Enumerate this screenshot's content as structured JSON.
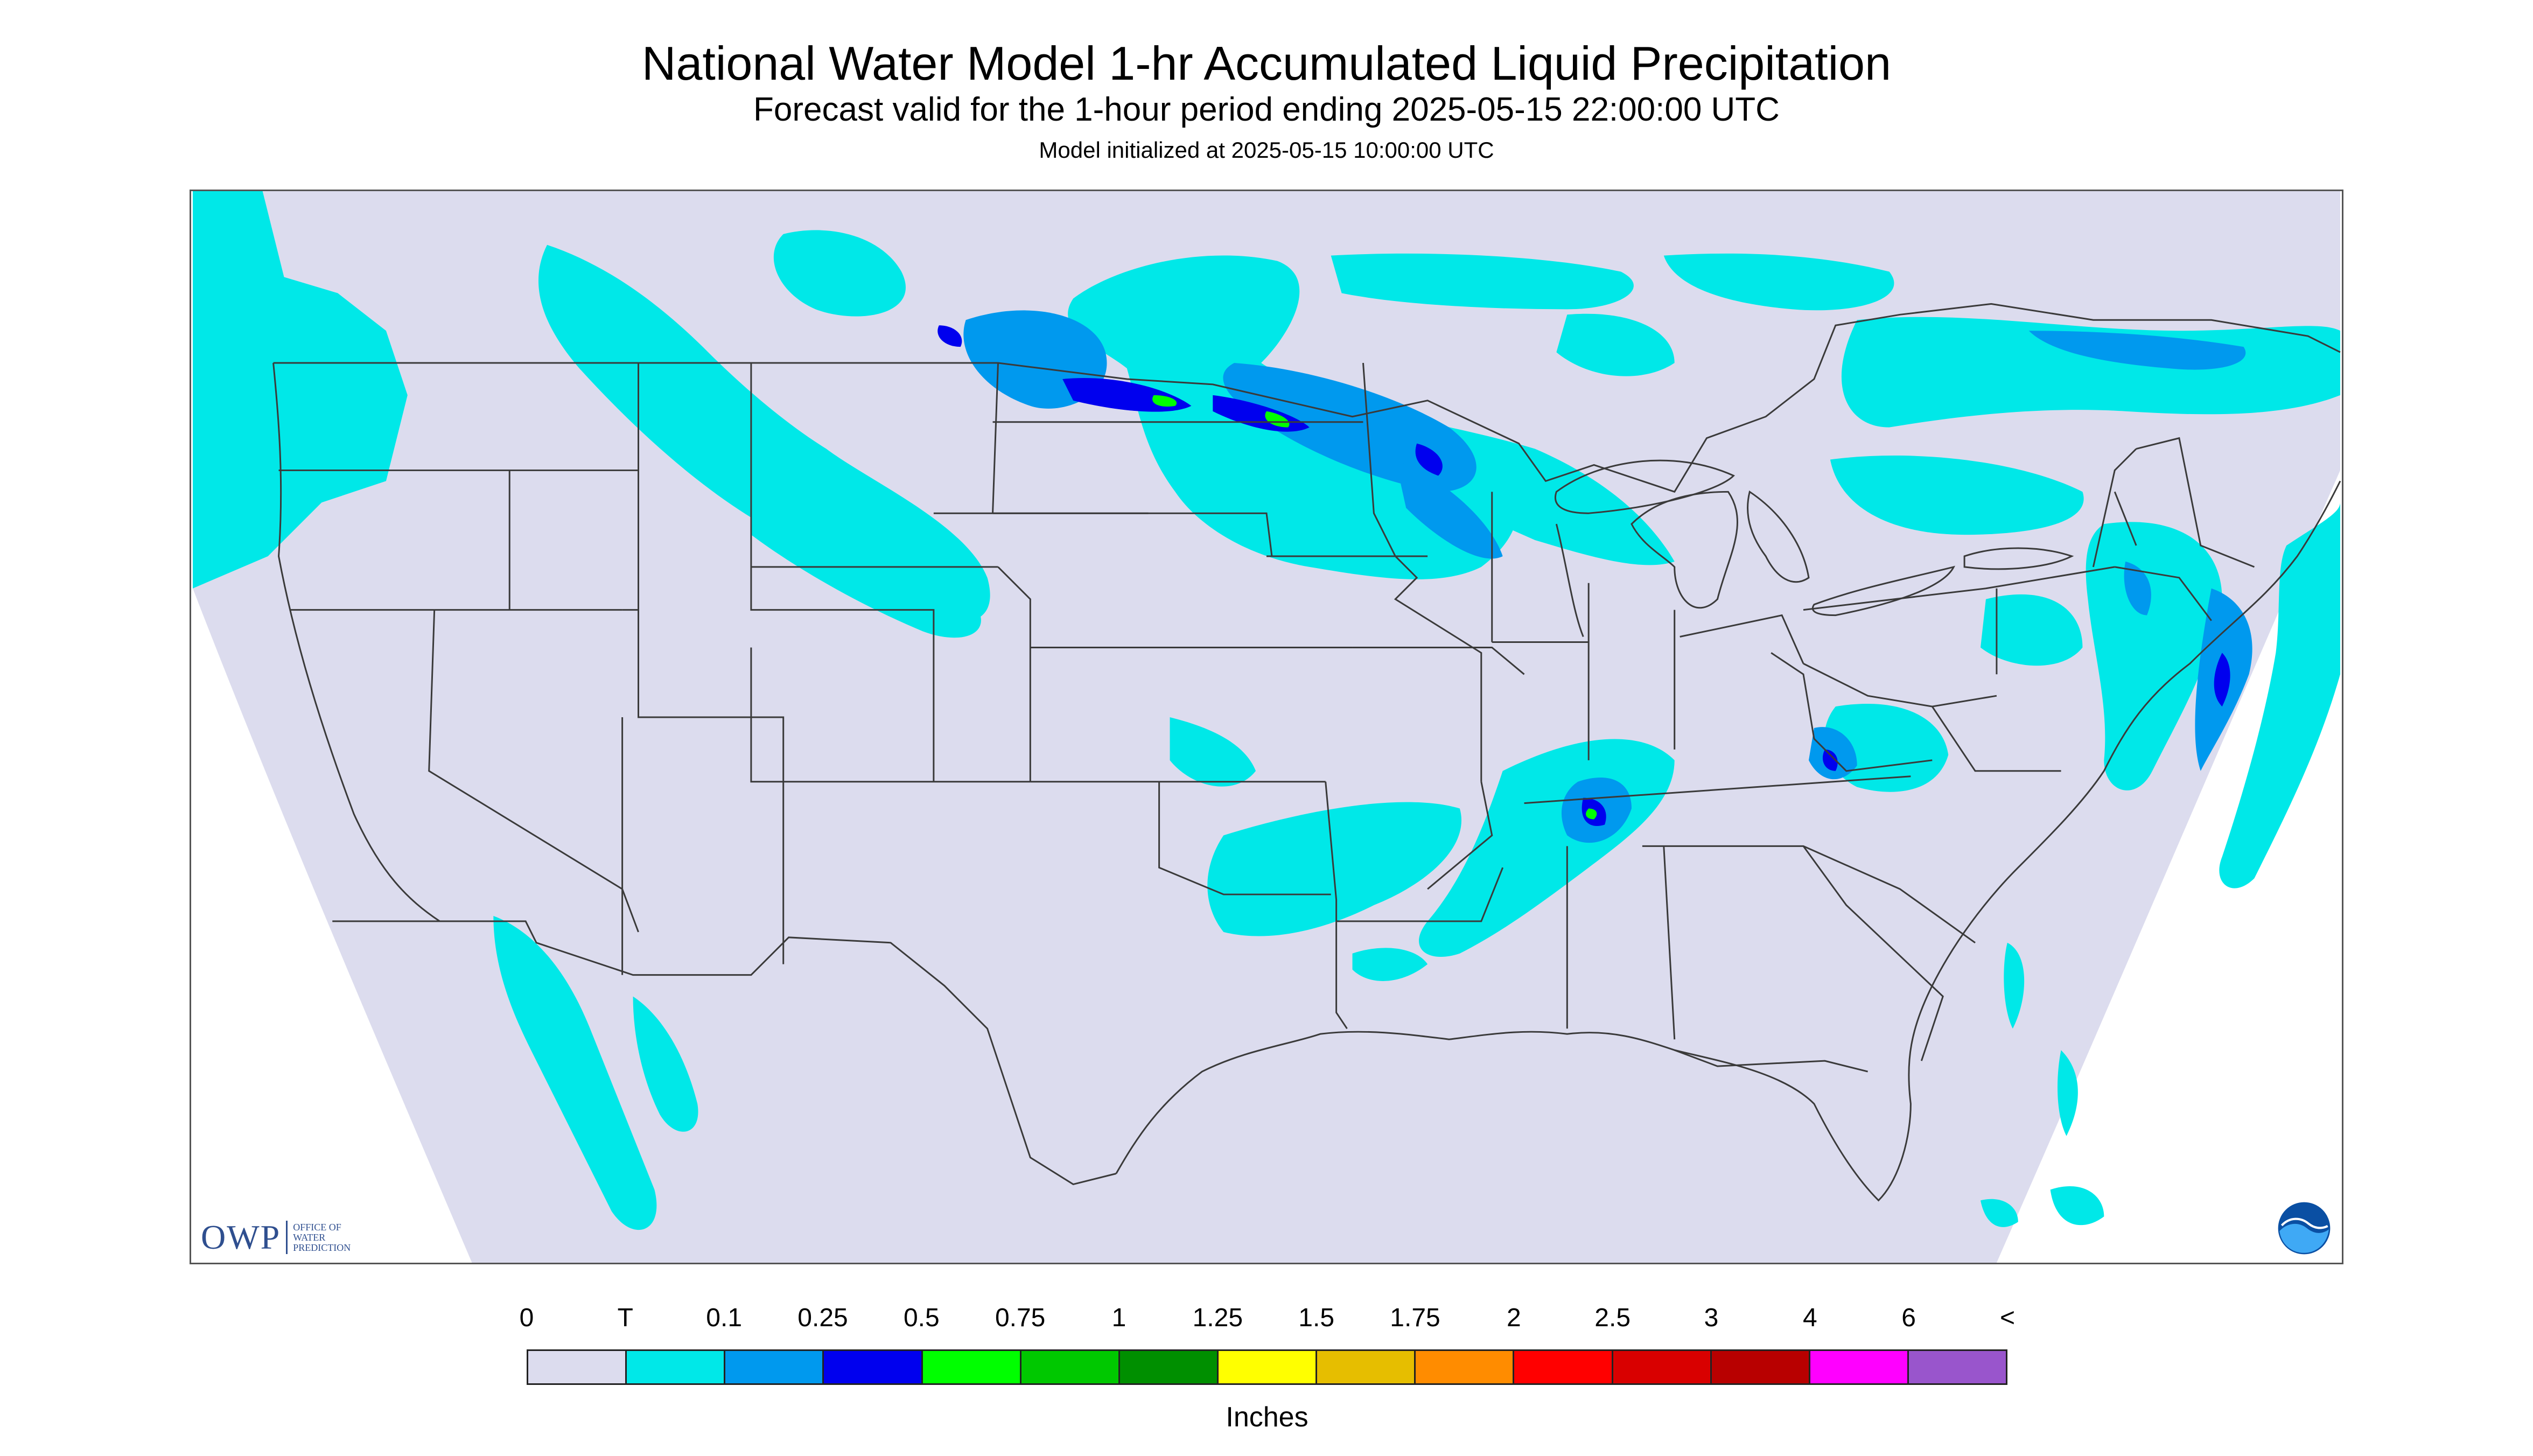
{
  "header": {
    "title": "National Water Model 1-hr Accumulated Liquid Precipitation",
    "subtitle": "Forecast valid for the 1-hour period ending 2025-05-15 22:00:00 UTC",
    "init": "Model initialized at 2025-05-15 10:00:00 UTC"
  },
  "map": {
    "background_color": "#dcdcee",
    "outside_color": "#ffffff",
    "border_color": "#3a3a3a",
    "precip_colors": {
      "trace": "#00e8e8",
      "tenth": "#0099ee",
      "quarter": "#0000ee",
      "half": "#00ff00"
    }
  },
  "logos": {
    "owp_text": "OWP",
    "owp_subtext": "OFFICE OF WATER PREDICTION",
    "noaa_icon": "noaa-logo-icon"
  },
  "legend": {
    "labels": [
      "0",
      "T",
      "0.1",
      "0.25",
      "0.5",
      "0.75",
      "1",
      "1.25",
      "1.5",
      "1.75",
      "2",
      "2.5",
      "3",
      "4",
      "6",
      "<"
    ],
    "colors": [
      "#dcdcee",
      "#00e8e8",
      "#0099ee",
      "#0000ee",
      "#00ff00",
      "#00c800",
      "#008f00",
      "#ffff00",
      "#e6be00",
      "#ff8c00",
      "#ff0000",
      "#d90000",
      "#b80000",
      "#ff00ff",
      "#9955cc"
    ],
    "units": "Inches"
  }
}
